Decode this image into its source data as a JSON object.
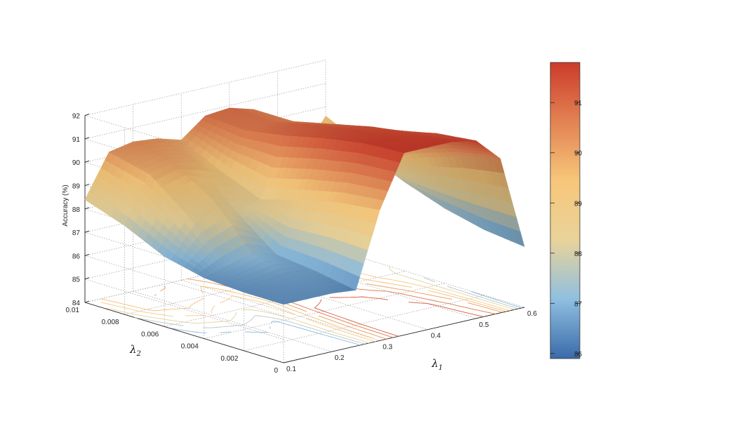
{
  "chart_data": {
    "type": "surface",
    "title": "",
    "xlabel": {
      "symbol": "λ",
      "sub": "1"
    },
    "ylabel": {
      "symbol": "λ",
      "sub": "2"
    },
    "zlabel": "Accuracy (%)",
    "x_ticks": [
      "0.1",
      "0.2",
      "0.3",
      "0.4",
      "0.5",
      "0.6"
    ],
    "y_ticks": [
      "0",
      "0.002",
      "0.004",
      "0.006",
      "0.008",
      "0.01"
    ],
    "z_ticks": [
      "84",
      "85",
      "86",
      "87",
      "88",
      "89",
      "90",
      "91",
      "92"
    ],
    "colorbar_ticks": [
      "86",
      "87",
      "88",
      "89",
      "90",
      "91"
    ],
    "xlim": [
      0.1,
      0.6
    ],
    "ylim": [
      0,
      0.01
    ],
    "zlim": [
      84,
      92
    ],
    "clim": [
      85.9,
      91.8
    ],
    "grid": true,
    "colormap": [
      "#3a6aa9",
      "#8fbfe0",
      "#e9d39a",
      "#f7c77a",
      "#e38253",
      "#cc3b2b"
    ],
    "x_grid": [
      0.1,
      0.15,
      0.2,
      0.25,
      0.3,
      0.35,
      0.4,
      0.45,
      0.5,
      0.55,
      0.6
    ],
    "y_grid": [
      0,
      0.002,
      0.004,
      0.006,
      0.008,
      0.01
    ],
    "z_values": [
      [
        86.5,
        86.5,
        86.5,
        86.4,
        89.6,
        91.8,
        91.8,
        91.8,
        91.6,
        90.6,
        86.6
      ],
      [
        86.5,
        86.6,
        86.7,
        86.7,
        89.4,
        91.7,
        91.7,
        91.6,
        91.4,
        90.2,
        86.8
      ],
      [
        86.6,
        86.9,
        87.2,
        86.9,
        89.0,
        91.4,
        91.5,
        91.4,
        91.0,
        89.6,
        87.2
      ],
      [
        87.0,
        88.5,
        89.0,
        88.2,
        88.5,
        91.0,
        91.2,
        91.0,
        90.2,
        88.8,
        87.8
      ],
      [
        87.8,
        89.8,
        90.0,
        89.8,
        89.2,
        90.7,
        90.8,
        90.6,
        89.6,
        88.6,
        88.8
      ],
      [
        88.4,
        90.2,
        90.4,
        90.3,
        90.0,
        90.8,
        90.9,
        90.6,
        89.5,
        88.2,
        89.6
      ]
    ]
  }
}
